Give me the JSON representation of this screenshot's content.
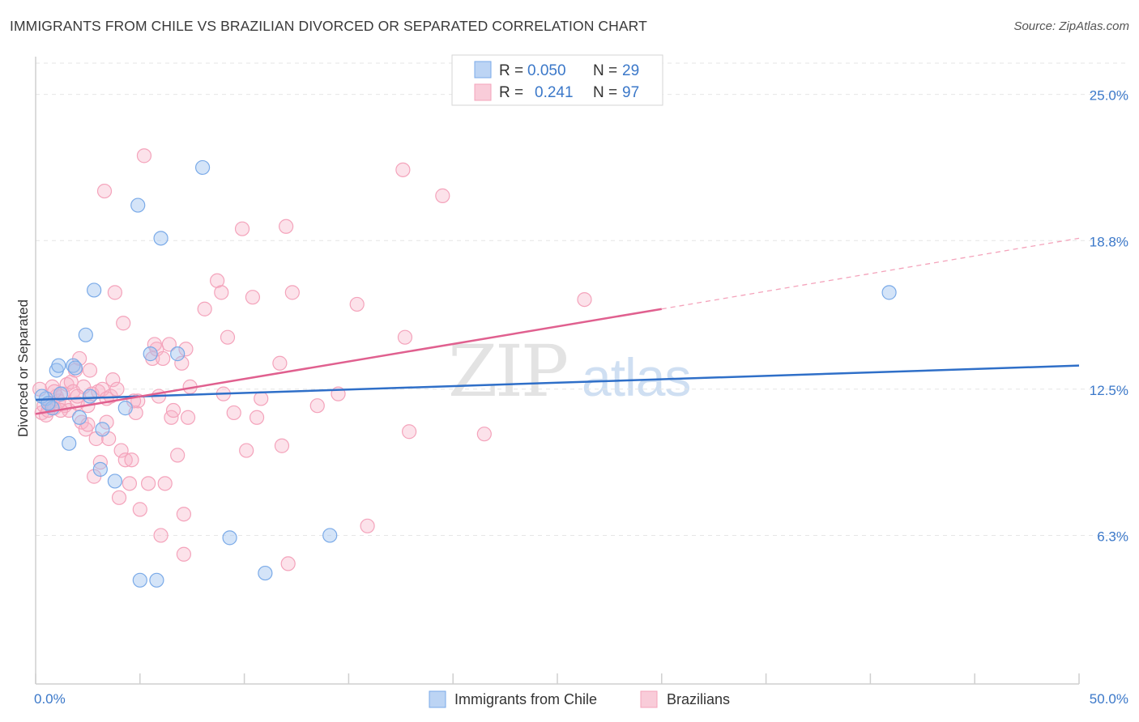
{
  "header": {
    "title": "IMMIGRANTS FROM CHILE VS BRAZILIAN DIVORCED OR SEPARATED CORRELATION CHART",
    "source": "Source: ZipAtlas.com"
  },
  "chart_data": {
    "type": "scatter",
    "title": "IMMIGRANTS FROM CHILE VS BRAZILIAN DIVORCED OR SEPARATED CORRELATION CHART",
    "xlabel": "",
    "ylabel": "Divorced or Separated",
    "xlim": [
      0,
      50
    ],
    "ylim": [
      0,
      26.6
    ],
    "x_tick_labels": [
      "0.0%",
      "50.0%"
    ],
    "y_ticks": [
      {
        "value": 25.0,
        "label": "25.0%"
      },
      {
        "value": 18.8,
        "label": "18.8%"
      },
      {
        "value": 12.5,
        "label": "12.5%"
      },
      {
        "value": 6.3,
        "label": "6.3%"
      }
    ],
    "grid": true,
    "legend_position": "top-center",
    "watermark": "ZIPatlas",
    "legend": [
      {
        "r_label": "R = ",
        "r_value": "0.050",
        "n_label": "N = ",
        "n_value": "29"
      },
      {
        "r_label": "R = ",
        "r_value": "0.241",
        "n_label": "N = ",
        "n_value": "97"
      }
    ],
    "series": [
      {
        "name": "Immigrants from Chile",
        "color": "#7aaae8",
        "line_color": "#2f6fc8",
        "trend": {
          "x0": 0,
          "y0": 12.05,
          "x1": 50,
          "y1": 13.5
        },
        "points": [
          [
            0.5,
            12.1
          ],
          [
            0.8,
            11.7
          ],
          [
            1.0,
            13.3
          ],
          [
            1.2,
            12.3
          ],
          [
            1.1,
            13.5
          ],
          [
            1.6,
            10.2
          ],
          [
            1.8,
            13.5
          ],
          [
            1.9,
            13.4
          ],
          [
            2.1,
            11.3
          ],
          [
            2.4,
            14.8
          ],
          [
            2.6,
            12.2
          ],
          [
            2.8,
            16.7
          ],
          [
            3.1,
            9.1
          ],
          [
            3.2,
            10.8
          ],
          [
            3.8,
            8.6
          ],
          [
            4.3,
            11.7
          ],
          [
            4.9,
            20.3
          ],
          [
            5.0,
            4.4
          ],
          [
            5.5,
            14.0
          ],
          [
            5.8,
            4.4
          ],
          [
            6.0,
            18.9
          ],
          [
            6.8,
            14.0
          ],
          [
            8.0,
            21.9
          ],
          [
            9.3,
            6.2
          ],
          [
            11.0,
            4.7
          ],
          [
            14.1,
            6.3
          ],
          [
            40.9,
            16.6
          ],
          [
            0.3,
            12.2
          ],
          [
            0.6,
            11.9
          ]
        ]
      },
      {
        "name": "Brazilians",
        "color": "#f4a3bb",
        "line_color": "#e0608f",
        "trend": {
          "x0": 0,
          "y0": 11.45,
          "x1": 30,
          "y1": 15.9,
          "dash_x1": 50,
          "dash_y1": 18.9
        },
        "points": [
          [
            0.2,
            12.5
          ],
          [
            0.3,
            11.5
          ],
          [
            0.4,
            11.8
          ],
          [
            0.5,
            11.4
          ],
          [
            0.6,
            11.6
          ],
          [
            0.7,
            11.9
          ],
          [
            0.8,
            12.6
          ],
          [
            0.9,
            11.7
          ],
          [
            1.0,
            12.2
          ],
          [
            1.1,
            12.0
          ],
          [
            1.3,
            12.3
          ],
          [
            1.4,
            11.8
          ],
          [
            1.5,
            12.7
          ],
          [
            1.6,
            11.6
          ],
          [
            1.7,
            12.8
          ],
          [
            1.8,
            12.4
          ],
          [
            1.9,
            13.3
          ],
          [
            2.0,
            11.9
          ],
          [
            2.1,
            13.8
          ],
          [
            2.2,
            11.1
          ],
          [
            2.3,
            12.6
          ],
          [
            2.4,
            10.8
          ],
          [
            2.5,
            11.0
          ],
          [
            2.6,
            13.3
          ],
          [
            2.7,
            12.3
          ],
          [
            2.8,
            8.8
          ],
          [
            2.9,
            10.4
          ],
          [
            3.0,
            12.4
          ],
          [
            3.1,
            9.4
          ],
          [
            3.2,
            12.5
          ],
          [
            3.3,
            20.9
          ],
          [
            3.4,
            11.1
          ],
          [
            3.5,
            10.4
          ],
          [
            3.6,
            12.2
          ],
          [
            3.7,
            12.9
          ],
          [
            3.8,
            16.6
          ],
          [
            3.9,
            12.5
          ],
          [
            4.0,
            7.9
          ],
          [
            4.1,
            9.9
          ],
          [
            4.2,
            15.3
          ],
          [
            4.3,
            9.5
          ],
          [
            4.5,
            8.5
          ],
          [
            4.6,
            9.5
          ],
          [
            4.8,
            11.5
          ],
          [
            4.9,
            12.0
          ],
          [
            5.0,
            7.4
          ],
          [
            5.2,
            22.4
          ],
          [
            5.4,
            8.5
          ],
          [
            5.6,
            13.8
          ],
          [
            5.8,
            14.2
          ],
          [
            5.9,
            12.2
          ],
          [
            6.1,
            13.8
          ],
          [
            6.2,
            8.5
          ],
          [
            6.4,
            14.4
          ],
          [
            6.5,
            11.3
          ],
          [
            6.6,
            11.6
          ],
          [
            6.8,
            9.7
          ],
          [
            7.0,
            13.6
          ],
          [
            7.1,
            7.2
          ],
          [
            7.2,
            14.2
          ],
          [
            7.3,
            11.3
          ],
          [
            7.4,
            12.6
          ],
          [
            8.1,
            15.9
          ],
          [
            8.7,
            17.1
          ],
          [
            8.9,
            16.6
          ],
          [
            9.0,
            12.3
          ],
          [
            9.2,
            14.7
          ],
          [
            9.5,
            11.5
          ],
          [
            9.9,
            19.3
          ],
          [
            10.1,
            9.9
          ],
          [
            10.4,
            16.4
          ],
          [
            10.6,
            11.3
          ],
          [
            10.8,
            12.1
          ],
          [
            11.7,
            13.6
          ],
          [
            11.8,
            10.1
          ],
          [
            12.0,
            19.4
          ],
          [
            12.1,
            5.1
          ],
          [
            12.3,
            16.6
          ],
          [
            13.5,
            11.8
          ],
          [
            14.5,
            12.3
          ],
          [
            15.4,
            16.1
          ],
          [
            15.9,
            6.7
          ],
          [
            17.6,
            21.8
          ],
          [
            17.7,
            14.7
          ],
          [
            17.9,
            10.7
          ],
          [
            19.5,
            20.7
          ],
          [
            21.5,
            10.6
          ],
          [
            26.3,
            16.3
          ],
          [
            6.0,
            6.3
          ],
          [
            7.1,
            5.5
          ],
          [
            3.4,
            12.1
          ],
          [
            2.0,
            12.2
          ],
          [
            1.2,
            11.6
          ],
          [
            0.9,
            12.4
          ],
          [
            5.7,
            14.4
          ],
          [
            4.7,
            12.0
          ],
          [
            2.5,
            11.8
          ]
        ]
      }
    ]
  }
}
